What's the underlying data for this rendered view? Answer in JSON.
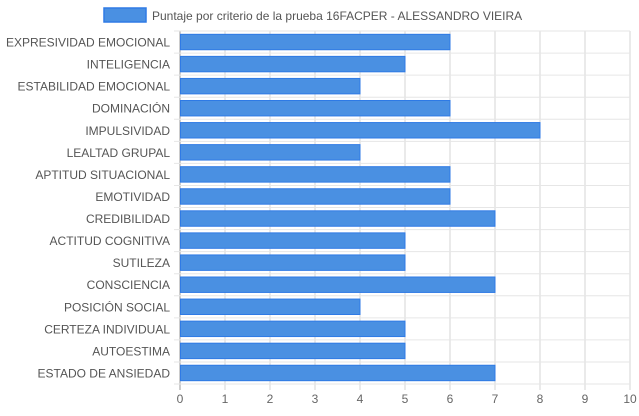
{
  "chart_data": {
    "type": "bar",
    "orientation": "horizontal",
    "categories": [
      "EXPRESIVIDAD EMOCIONAL",
      "INTELIGENCIA",
      "ESTABILIDAD EMOCIONAL",
      "DOMINACIÓN",
      "IMPULSIVIDAD",
      "LEALTAD GRUPAL",
      "APTITUD SITUACIONAL",
      "EMOTIVIDAD",
      "CREDIBILIDAD",
      "ACTITUD COGNITIVA",
      "SUTILEZA",
      "CONSCIENCIA",
      "POSICIÓN SOCIAL",
      "CERTEZA INDIVIDUAL",
      "AUTOESTIMA",
      "ESTADO DE ANSIEDAD"
    ],
    "series": [
      {
        "name": "Puntaje por criterio de la prueba 16FACPER - ALESSANDRO VIEIRA",
        "values": [
          6,
          5,
          4,
          6,
          8,
          4,
          6,
          6,
          7,
          5,
          5,
          7,
          4,
          5,
          5,
          7
        ],
        "color": "#4a90e2",
        "border_color": "#2f7ae5"
      }
    ],
    "xlim": [
      0,
      10
    ],
    "x_ticks": [
      "0",
      "1",
      "2",
      "3",
      "4",
      "5",
      "6",
      "7",
      "8",
      "9",
      "10"
    ],
    "grid": true,
    "legend_position": "top"
  }
}
